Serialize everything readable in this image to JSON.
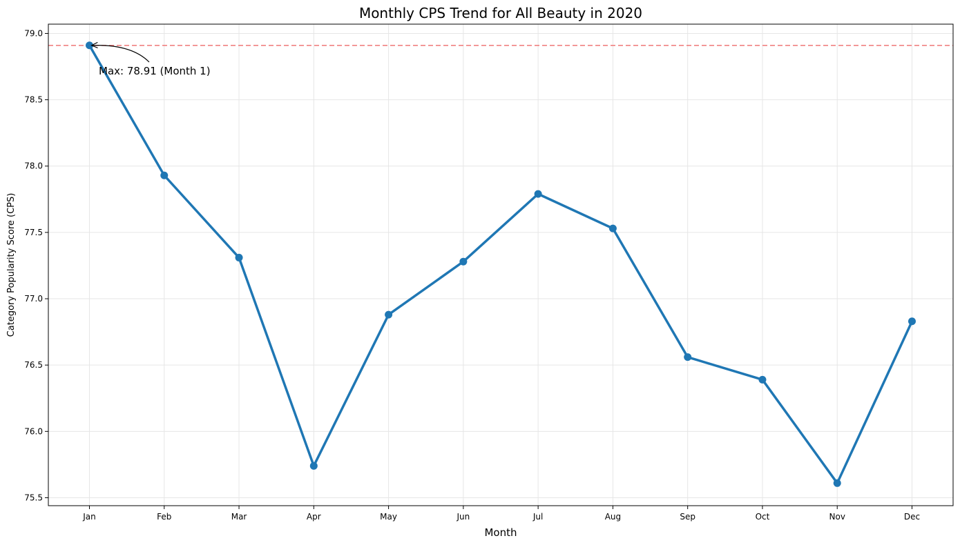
{
  "chart_data": {
    "type": "line",
    "title": "Monthly CPS Trend for All Beauty in 2020",
    "xlabel": "Month",
    "ylabel": "Category Popularity Score (CPS)",
    "categories": [
      "Jan",
      "Feb",
      "Mar",
      "Apr",
      "May",
      "Jun",
      "Jul",
      "Aug",
      "Sep",
      "Oct",
      "Nov",
      "Dec"
    ],
    "series": [
      {
        "values": [
          78.91,
          77.93,
          77.31,
          75.74,
          76.88,
          77.28,
          77.79,
          77.53,
          76.56,
          76.39,
          75.61,
          76.83
        ],
        "color": "#1f77b4"
      }
    ],
    "ylim": [
      75.44,
      79.07
    ],
    "yticks": [
      "75.5",
      "76.0",
      "76.5",
      "77.0",
      "77.5",
      "78.0",
      "78.5",
      "79.0"
    ],
    "grid": true,
    "reference_line": {
      "value": 78.91,
      "color": "#f08080",
      "style": "dashed"
    },
    "annotation": {
      "text": "Max: 78.91 (Month 1)",
      "category": "Jan",
      "value": 78.91
    }
  }
}
